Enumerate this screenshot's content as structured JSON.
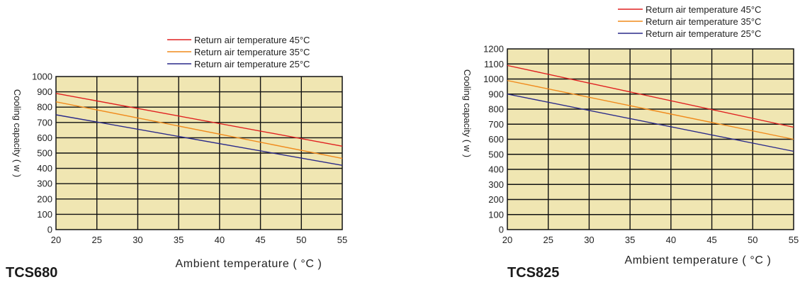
{
  "chart_data": [
    {
      "type": "line",
      "model": "TCS680",
      "xlabel": "Ambient temperature ( °C )",
      "ylabel": "Cooling capacity ( w )",
      "xlim": [
        20,
        55
      ],
      "ylim": [
        0,
        1000
      ],
      "x_ticks": [
        20,
        25,
        30,
        35,
        40,
        45,
        50,
        55
      ],
      "y_ticks": [
        0,
        100,
        200,
        300,
        400,
        500,
        600,
        700,
        800,
        900,
        1000
      ],
      "grid": true,
      "legend_position": "top-right",
      "plot_background": "#f0e6b2",
      "series": [
        {
          "name": "Return air temperature 45°C",
          "color": "#e02020",
          "x": [
            20,
            55
          ],
          "y": [
            890,
            545
          ]
        },
        {
          "name": "Return air temperature 35°C",
          "color": "#f08a1c",
          "x": [
            20,
            55
          ],
          "y": [
            835,
            465
          ]
        },
        {
          "name": "Return air temperature 25°C",
          "color": "#2a2a8a",
          "x": [
            20,
            55
          ],
          "y": [
            750,
            420
          ]
        }
      ]
    },
    {
      "type": "line",
      "model": "TCS825",
      "xlabel": "Ambient temperature ( °C )",
      "ylabel": "Cooling capacity ( w )",
      "xlim": [
        20,
        55
      ],
      "ylim": [
        0,
        1200
      ],
      "x_ticks": [
        20,
        25,
        30,
        35,
        40,
        45,
        50,
        55
      ],
      "y_ticks": [
        0,
        100,
        200,
        300,
        400,
        500,
        600,
        700,
        800,
        900,
        1000,
        1100,
        1200
      ],
      "grid": true,
      "legend_position": "top-right",
      "plot_background": "#f0e6b2",
      "series": [
        {
          "name": "Return air temperature 45°C",
          "color": "#e02020",
          "x": [
            20,
            55
          ],
          "y": [
            1090,
            680
          ]
        },
        {
          "name": "Return air temperature 35°C",
          "color": "#f08a1c",
          "x": [
            20,
            55
          ],
          "y": [
            990,
            600
          ]
        },
        {
          "name": "Return air temperature 25°C",
          "color": "#2a2a8a",
          "x": [
            20,
            55
          ],
          "y": [
            900,
            520
          ]
        }
      ]
    }
  ]
}
